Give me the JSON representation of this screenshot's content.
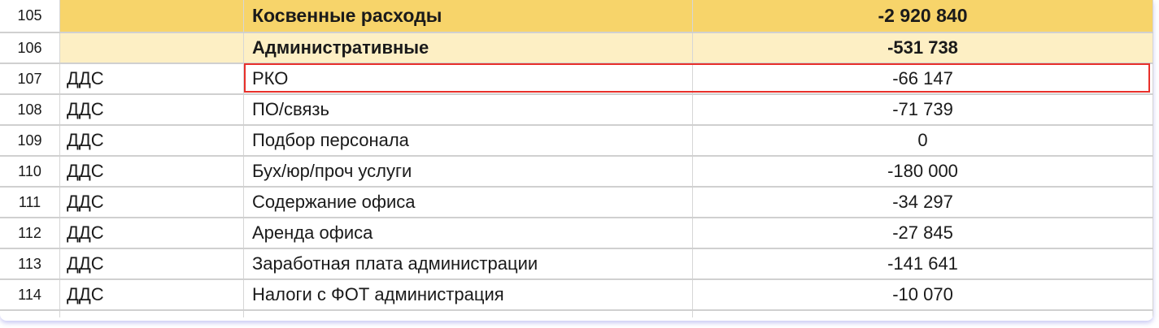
{
  "rows": [
    {
      "num": "105",
      "source": "",
      "item": "Косвенные расходы",
      "value": "-2 920 840",
      "style": "header1"
    },
    {
      "num": "106",
      "source": "",
      "item": "Административные",
      "value": "-531 738",
      "style": "header2"
    },
    {
      "num": "107",
      "source": "ДДС",
      "item": "РКО",
      "value": "-66 147",
      "selected": true
    },
    {
      "num": "108",
      "source": "ДДС",
      "item": "ПО/связь",
      "value": "-71 739"
    },
    {
      "num": "109",
      "source": "ДДС",
      "item": "Подбор персонала",
      "value": "0"
    },
    {
      "num": "110",
      "source": "ДДС",
      "item": "Бух/юр/проч услуги",
      "value": "-180 000"
    },
    {
      "num": "111",
      "source": "ДДС",
      "item": "Содержание офиса",
      "value": "-34 297"
    },
    {
      "num": "112",
      "source": "ДДС",
      "item": "Аренда офиса",
      "value": "-27 845"
    },
    {
      "num": "113",
      "source": "ДДС",
      "item": "Заработная плата администрации",
      "value": "-141 641"
    },
    {
      "num": "114",
      "source": "ДДС",
      "item": "Налоги с ФОТ администрация",
      "value": "-10 070"
    }
  ],
  "colors": {
    "header1": "#f7d46a",
    "header2": "#fdefc4",
    "selection": "#e8302a"
  }
}
